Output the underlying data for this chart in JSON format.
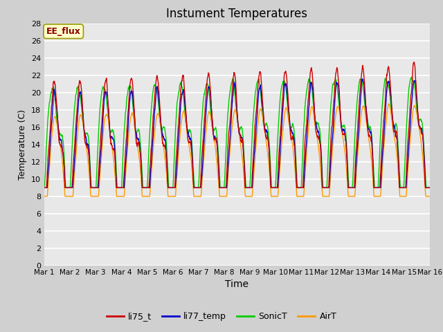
{
  "title": "Instument Temperatures",
  "xlabel": "Time",
  "ylabel": "Temperature (C)",
  "annotation": "EE_flux",
  "ylim": [
    0,
    28
  ],
  "yticks": [
    0,
    2,
    4,
    6,
    8,
    10,
    12,
    14,
    16,
    18,
    20,
    22,
    24,
    26,
    28
  ],
  "xtick_labels": [
    "Mar 1",
    "Mar 2",
    "Mar 3",
    "Mar 4",
    "Mar 5",
    "Mar 6",
    "Mar 7",
    "Mar 8",
    "Mar 9",
    "Mar 10",
    "Mar 11",
    "Mar 12",
    "Mar 13",
    "Mar 14",
    "Mar 15",
    "Mar 16"
  ],
  "n_days": 15,
  "colors": {
    "li75_t": "#cc0000",
    "li77_temp": "#0000cc",
    "SonicT": "#00cc00",
    "AirT": "#ff9900"
  },
  "legend_labels": [
    "li75_t",
    "li77_temp",
    "SonicT",
    "AirT"
  ],
  "fig_bg_color": "#d0d0d0",
  "plot_bg_color": "#e8e8e8",
  "grid_color": "#ffffff",
  "annotation_bg": "#ffffcc",
  "annotation_text_color": "#880000",
  "annotation_edge_color": "#999900"
}
